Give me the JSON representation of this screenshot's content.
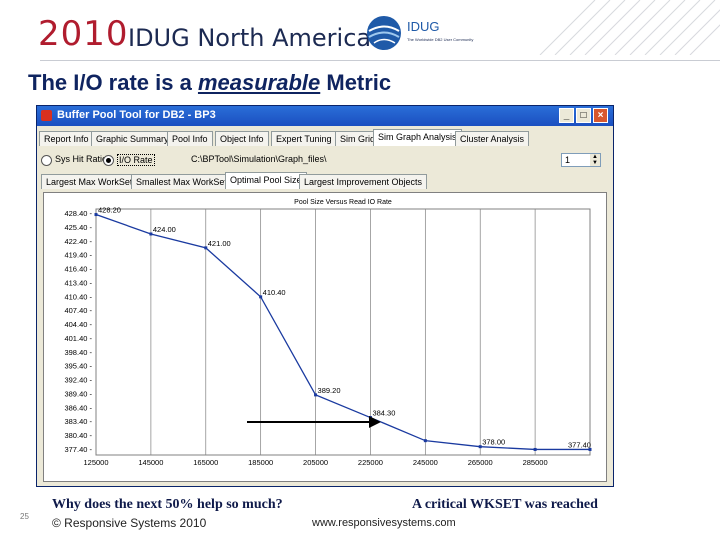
{
  "header": {
    "year": "2010",
    "conference": "IDUG North America",
    "logo_text": "IDUG",
    "logo_tagline": "The Worldwide DB2 User Community",
    "brand_red": "#b01c2e",
    "brand_navy": "#1c2a52"
  },
  "slide": {
    "title_prefix": "The I/O rate is a ",
    "title_emphasis": "measurable",
    "title_suffix": " Metric",
    "caption_left": "Why does the next 50% help so much?",
    "caption_right": "A critical WKSET was reached",
    "page_number": "25",
    "copyright": "© Responsive Systems 2010",
    "website": "www.responsivesystems.com"
  },
  "window": {
    "title": "Buffer Pool Tool for DB2 - BP3",
    "controls": [
      "_",
      "□",
      "×"
    ],
    "tabs": [
      "Report Info",
      "Graphic Summary",
      "Pool Info",
      "Object Info",
      "Expert Tuning",
      "Sim Grid",
      "Sim Graph Analysis",
      "Cluster Analysis"
    ],
    "selected_tab": "Sim Graph Analysis",
    "radio_hit_ratio": "Sys Hit Ratio",
    "radio_io_rate": "I/O Rate",
    "path_text": "C:\\BPTool\\Simulation\\Graph_files\\",
    "spinner_value": "1",
    "subtabs": [
      "Largest Max WorkSet",
      "Smallest Max WorkSet",
      "Optimal Pool Size",
      "Largest Improvement Objects"
    ],
    "selected_subtab": "Optimal Pool Size"
  },
  "chart_data": {
    "type": "line",
    "title": "Pool Size Versus Read IO Rate",
    "x": [
      125000,
      145000,
      165000,
      185000,
      205000,
      225000,
      245000,
      265000,
      285000,
      305000
    ],
    "y": [
      428.2,
      424.0,
      421.0,
      410.4,
      389.2,
      384.3,
      379.3,
      378.0,
      377.4,
      377.4
    ],
    "data_labels": [
      "428.20",
      "424.00",
      "421.00",
      "410.40",
      "389.20",
      "384.30",
      "",
      "378.00",
      "",
      "377.40"
    ],
    "xticks": [
      "125000",
      "145000",
      "165000",
      "185000",
      "205000",
      "225000",
      "245000",
      "265000",
      "285000"
    ],
    "yticks": [
      "428.40",
      "425.40",
      "422.40",
      "419.40",
      "416.40",
      "413.40",
      "410.40",
      "407.40",
      "404.40",
      "401.40",
      "398.40",
      "395.40",
      "392.40",
      "389.40",
      "386.40",
      "383.40",
      "380.40",
      "377.40"
    ],
    "xlim": [
      125000,
      305000
    ],
    "ylim": [
      376.2,
      429.4
    ],
    "series_color": "#1a3aa0",
    "grid": "vertical"
  }
}
